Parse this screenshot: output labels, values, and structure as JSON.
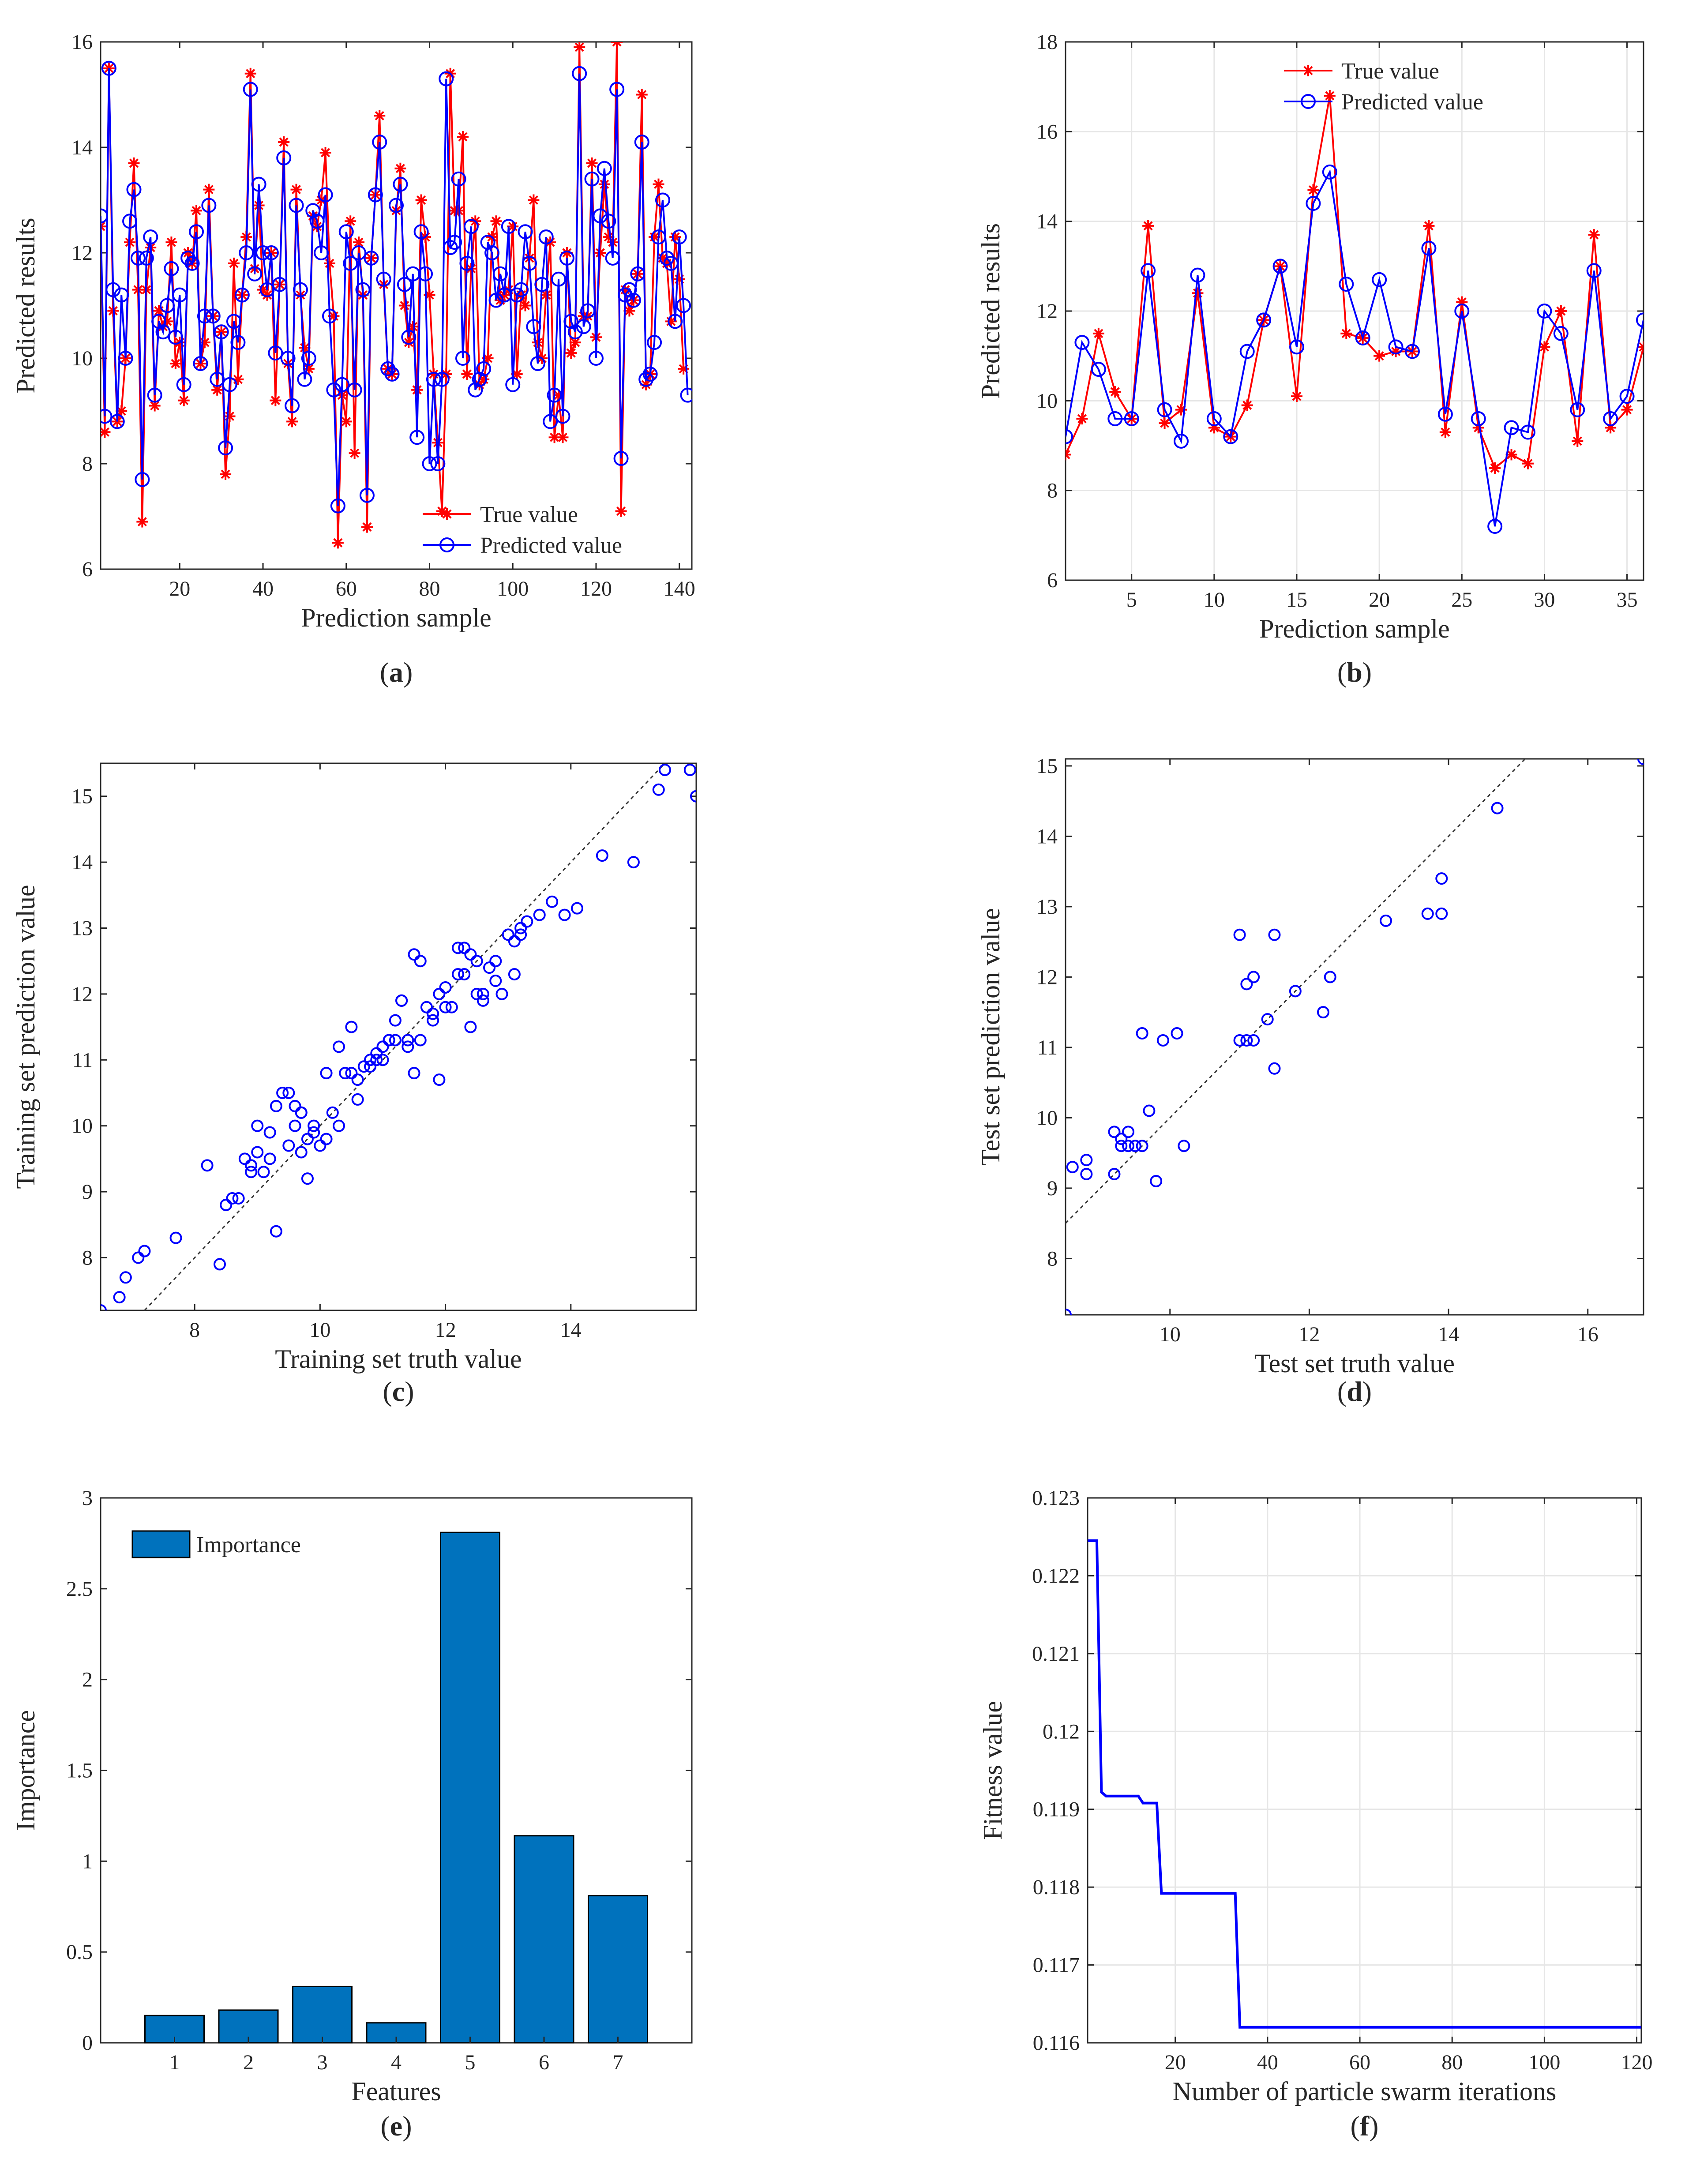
{
  "panels": [
    {
      "id": "a",
      "label_text": "a"
    },
    {
      "id": "b",
      "label_text": "b"
    },
    {
      "id": "c",
      "label_text": "c"
    },
    {
      "id": "d",
      "label_text": "d"
    },
    {
      "id": "e",
      "label_text": "e"
    },
    {
      "id": "f",
      "label_text": "f"
    }
  ],
  "colors": {
    "true_series": "#ff0000",
    "predicted_series": "#0000ff",
    "bar_fill": "#0072bd",
    "axis": "#262626",
    "grid": "#e6e6e6",
    "diagonal": "#333333"
  },
  "chart_data": [
    {
      "id": "a",
      "type": "line",
      "xlabel": "Prediction sample",
      "ylabel": "Predicted results",
      "xlim": [
        1,
        143
      ],
      "ylim": [
        6,
        16
      ],
      "xticks": [
        20,
        40,
        60,
        80,
        100,
        120,
        140
      ],
      "yticks": [
        6,
        8,
        10,
        12,
        14,
        16
      ],
      "grid": false,
      "legend_position": "bottom-right",
      "series": [
        {
          "name": "True value",
          "marker": "asterisk",
          "color": "#ff0000",
          "values": [
            12.5,
            8.6,
            15.5,
            10.9,
            8.8,
            9.0,
            10.0,
            12.2,
            13.7,
            11.3,
            6.9,
            11.3,
            12.1,
            9.1,
            10.9,
            10.6,
            10.7,
            12.2,
            9.9,
            10.3,
            9.2,
            12.0,
            11.8,
            12.8,
            9.9,
            10.3,
            13.2,
            10.8,
            9.4,
            10.5,
            7.8,
            8.9,
            11.8,
            9.6,
            11.2,
            12.3,
            15.4,
            11.7,
            12.9,
            11.3,
            11.2,
            12.0,
            9.2,
            11.4,
            14.1,
            9.9,
            8.8,
            13.2,
            11.2,
            10.2,
            9.8,
            12.7,
            12.5,
            13.0,
            13.9,
            11.8,
            10.8,
            6.5,
            9.3,
            8.8,
            12.6,
            8.2,
            12.2,
            11.2,
            6.8,
            11.9,
            13.1,
            14.6,
            11.4,
            9.8,
            9.7,
            12.8,
            13.6,
            11.0,
            10.3,
            10.6,
            9.4,
            13.0,
            12.3,
            11.2,
            9.7,
            8.4,
            7.1,
            9.7,
            15.4,
            12.8,
            12.8,
            14.2,
            9.7,
            11.7,
            12.6,
            9.5,
            9.6,
            10.0,
            12.3,
            12.6,
            11.1,
            11.2,
            11.3,
            12.5,
            9.7,
            11.2,
            11.0,
            11.9,
            13.0,
            10.3,
            10.0,
            11.2,
            12.2,
            8.5,
            9.3,
            8.5,
            12.0,
            10.1,
            10.3,
            15.9,
            10.8,
            10.8,
            13.7,
            10.4,
            12.0,
            13.3,
            12.3,
            12.2,
            16.0,
            7.1,
            11.3,
            10.9,
            11.1,
            11.6,
            15.0,
            9.5,
            9.7,
            12.3,
            13.3,
            11.9,
            11.8,
            10.7,
            12.3,
            11.5,
            9.8
          ]
        },
        {
          "name": "Predicted value",
          "marker": "circle",
          "color": "#0000ff",
          "values": [
            12.7,
            8.9,
            15.5,
            11.3,
            8.8,
            11.2,
            10.0,
            12.6,
            13.2,
            11.9,
            7.7,
            11.9,
            12.3,
            9.3,
            10.7,
            10.5,
            11.0,
            11.7,
            10.4,
            11.2,
            9.5,
            11.9,
            11.8,
            12.4,
            9.9,
            10.8,
            12.9,
            10.8,
            9.6,
            10.5,
            8.3,
            9.5,
            10.7,
            10.3,
            11.2,
            12.0,
            15.1,
            11.6,
            13.3,
            12.0,
            11.3,
            12.0,
            10.1,
            11.4,
            13.8,
            10.0,
            9.1,
            12.9,
            11.3,
            9.6,
            10.0,
            12.8,
            12.6,
            12.0,
            13.1,
            10.8,
            9.4,
            7.2,
            9.5,
            12.4,
            11.8,
            9.4,
            12.0,
            11.3,
            7.4,
            11.9,
            13.1,
            14.1,
            11.5,
            9.8,
            9.7,
            12.9,
            13.3,
            11.4,
            10.4,
            11.6,
            8.5,
            12.4,
            11.6,
            8.0,
            9.6,
            8.0,
            9.6,
            15.3,
            12.1,
            12.2,
            13.4,
            10.0,
            11.8,
            12.5,
            9.4,
            9.6,
            9.8,
            12.2,
            12.0,
            11.1,
            11.6,
            11.2,
            12.5,
            9.5,
            11.2,
            11.3,
            12.4,
            11.8,
            10.6,
            9.9,
            11.4,
            12.3,
            8.8,
            9.3,
            11.5,
            8.9,
            11.9,
            10.7,
            10.5,
            15.4,
            10.6,
            10.9,
            13.4,
            10.0,
            12.7,
            13.6,
            12.6,
            11.9,
            15.1,
            8.1,
            11.2,
            11.3,
            11.1,
            11.6,
            14.1,
            9.6,
            9.7,
            10.3,
            12.3,
            13.0,
            11.9,
            11.8,
            10.7,
            12.3,
            11.0,
            9.3
          ]
        }
      ]
    },
    {
      "id": "b",
      "type": "line",
      "xlabel": "Prediction sample",
      "ylabel": "Predicted results",
      "xlim": [
        1,
        36
      ],
      "ylim": [
        6,
        18
      ],
      "xticks": [
        5,
        10,
        15,
        20,
        25,
        30,
        35
      ],
      "yticks": [
        6,
        8,
        10,
        12,
        14,
        16,
        18
      ],
      "grid": true,
      "legend_position": "top-center",
      "series": [
        {
          "name": "True value",
          "marker": "asterisk",
          "color": "#ff0000",
          "values": [
            8.8,
            9.6,
            11.5,
            10.2,
            9.6,
            13.9,
            9.5,
            9.8,
            12.4,
            9.4,
            9.2,
            9.9,
            11.8,
            13.0,
            10.1,
            14.7,
            16.8,
            11.5,
            11.4,
            11.0,
            11.1,
            11.1,
            13.9,
            9.3,
            12.2,
            9.4,
            8.5,
            8.8,
            8.6,
            11.2,
            12.0,
            9.1,
            13.7,
            9.4,
            9.8,
            11.2
          ]
        },
        {
          "name": "Predicted value",
          "marker": "circle",
          "color": "#0000ff",
          "values": [
            9.2,
            11.3,
            10.7,
            9.6,
            9.6,
            12.9,
            9.8,
            9.1,
            12.8,
            9.6,
            9.2,
            11.1,
            11.8,
            13.0,
            11.2,
            14.4,
            15.1,
            12.6,
            11.4,
            12.7,
            11.2,
            11.1,
            13.4,
            9.7,
            12.0,
            9.6,
            7.2,
            9.4,
            9.3,
            12.0,
            11.5,
            9.8,
            12.9,
            9.6,
            10.1,
            11.8
          ]
        }
      ]
    },
    {
      "id": "c",
      "type": "scatter",
      "xlabel": "Training set truth value",
      "ylabel": "Training set prediction value",
      "xlim": [
        6.5,
        16
      ],
      "ylim": [
        7.2,
        15.5
      ],
      "xticks": [
        8,
        10,
        12,
        14
      ],
      "yticks": [
        8,
        9,
        10,
        11,
        12,
        13,
        14,
        15
      ],
      "grid": false,
      "diagonal": true,
      "x": [
        6.5,
        6.8,
        6.9,
        7.1,
        7.2,
        7.7,
        8.2,
        8.4,
        8.5,
        8.6,
        8.7,
        8.8,
        8.9,
        9.0,
        9.1,
        9.2,
        9.3,
        9.3,
        9.4,
        9.5,
        9.6,
        9.7,
        9.7,
        9.8,
        9.9,
        10.0,
        10.1,
        10.2,
        10.3,
        10.4,
        10.5,
        10.6,
        10.7,
        10.8,
        10.9,
        11.0,
        11.1,
        11.2,
        11.3,
        11.4,
        11.5,
        11.6,
        11.7,
        11.8,
        11.9,
        12.0,
        12.1,
        12.2,
        12.3,
        12.4,
        12.5,
        12.6,
        12.7,
        12.8,
        12.9,
        13.0,
        13.1,
        13.2,
        13.3,
        13.5,
        13.7,
        13.9,
        14.1,
        14.5,
        15.0,
        15.4,
        15.5,
        15.9,
        16.0,
        9.5,
        9.8,
        10.3,
        10.6,
        11.0,
        11.4,
        11.6,
        11.9,
        12.2,
        12.6,
        13.1,
        8.9,
        9.6,
        10.9,
        11.5,
        12.3,
        11.2,
        10.1,
        9.9,
        12.5,
        13.2,
        9.0,
        9.7,
        10.5,
        11.3,
        12.0,
        12.8,
        11.8,
        10.8,
        9.2,
        11.1,
        12.4
      ],
      "y": [
        7.2,
        7.4,
        7.7,
        8.0,
        8.1,
        8.3,
        9.4,
        7.9,
        8.8,
        8.9,
        8.9,
        9.5,
        9.3,
        10.0,
        9.3,
        9.5,
        8.4,
        10.3,
        10.5,
        9.7,
        10.0,
        9.6,
        10.2,
        9.8,
        10.0,
        9.7,
        10.8,
        10.2,
        11.2,
        10.8,
        11.5,
        10.7,
        10.9,
        11.0,
        11.0,
        11.2,
        11.3,
        11.3,
        11.9,
        11.2,
        10.8,
        12.5,
        11.8,
        11.6,
        10.7,
        11.8,
        11.8,
        12.7,
        12.3,
        11.5,
        12.5,
        12.0,
        12.4,
        12.2,
        12.0,
        12.9,
        12.3,
        12.9,
        13.1,
        13.2,
        13.4,
        13.2,
        13.3,
        14.1,
        14.0,
        15.1,
        15.4,
        15.4,
        15.0,
        10.5,
        9.2,
        10.0,
        10.4,
        11.0,
        11.3,
        11.3,
        12.0,
        12.3,
        11.9,
        12.8,
        9.4,
        10.3,
        11.1,
        12.6,
        12.7,
        11.6,
        9.8,
        9.9,
        12.0,
        13.0,
        9.6,
        10.2,
        10.8,
        11.9,
        12.1,
        12.5,
        11.7,
        10.9,
        9.9,
        11.3,
        12.6
      ]
    },
    {
      "id": "d",
      "type": "scatter",
      "xlabel": "Test set truth value",
      "ylabel": "Test set prediction value",
      "xlim": [
        8.5,
        16.8
      ],
      "ylim": [
        7.2,
        15.1
      ],
      "xticks": [
        10,
        12,
        14,
        16
      ],
      "yticks": [
        8,
        9,
        10,
        11,
        12,
        13,
        14,
        15
      ],
      "grid": false,
      "diagonal": true,
      "x": [
        8.5,
        8.6,
        8.8,
        8.8,
        9.2,
        9.2,
        9.3,
        9.3,
        9.4,
        9.4,
        9.6,
        9.6,
        9.7,
        9.8,
        9.9,
        10.1,
        10.2,
        11.0,
        11.0,
        11.1,
        11.2,
        11.2,
        11.4,
        11.5,
        11.5,
        11.8,
        12.2,
        12.3,
        13.1,
        13.7,
        13.9,
        13.9,
        14.7,
        16.8,
        9.5,
        11.1
      ],
      "y": [
        7.2,
        9.3,
        9.2,
        9.4,
        9.8,
        9.2,
        9.6,
        9.7,
        9.6,
        9.8,
        9.6,
        11.2,
        10.1,
        9.1,
        11.1,
        11.2,
        9.6,
        11.1,
        12.6,
        11.9,
        12.0,
        11.1,
        11.4,
        10.7,
        12.6,
        11.8,
        11.5,
        12.0,
        12.8,
        12.9,
        12.9,
        13.4,
        14.4,
        15.1,
        9.6,
        11.1
      ]
    },
    {
      "id": "e",
      "type": "bar",
      "xlabel": "Features",
      "ylabel": "Importance",
      "categories": [
        "1",
        "2",
        "3",
        "4",
        "5",
        "6",
        "7"
      ],
      "values": [
        0.15,
        0.18,
        0.31,
        0.11,
        2.81,
        1.14,
        0.81
      ],
      "xlim": [
        0,
        8
      ],
      "ylim": [
        0,
        3
      ],
      "yticks": [
        0,
        0.5,
        1,
        1.5,
        2,
        2.5,
        3
      ],
      "ytick_labels": [
        "0",
        "0.5",
        "1",
        "1.5",
        "2",
        "2.5",
        "3"
      ],
      "grid": false,
      "legend_position": "top-left",
      "series": [
        {
          "name": "Importance"
        }
      ]
    },
    {
      "id": "f",
      "type": "line",
      "xlabel": "Number of particle swarm iterations",
      "ylabel": "Fitness value",
      "xlim": [
        1,
        121
      ],
      "ylim": [
        0.116,
        0.123
      ],
      "xticks": [
        20,
        40,
        60,
        80,
        100,
        120
      ],
      "yticks": [
        0.116,
        0.117,
        0.118,
        0.119,
        0.12,
        0.121,
        0.122,
        0.123
      ],
      "ytick_labels": [
        "0.116",
        "0.117",
        "0.118",
        "0.119",
        "0.12",
        "0.121",
        "0.122",
        "0.123"
      ],
      "grid": true,
      "step": true,
      "x": [
        1,
        3,
        4,
        5,
        12,
        13,
        16,
        17,
        33,
        34,
        121
      ],
      "y": [
        0.12245,
        0.12245,
        0.11922,
        0.11917,
        0.11917,
        0.11908,
        0.11908,
        0.11792,
        0.11792,
        0.1162,
        0.1162
      ]
    }
  ]
}
